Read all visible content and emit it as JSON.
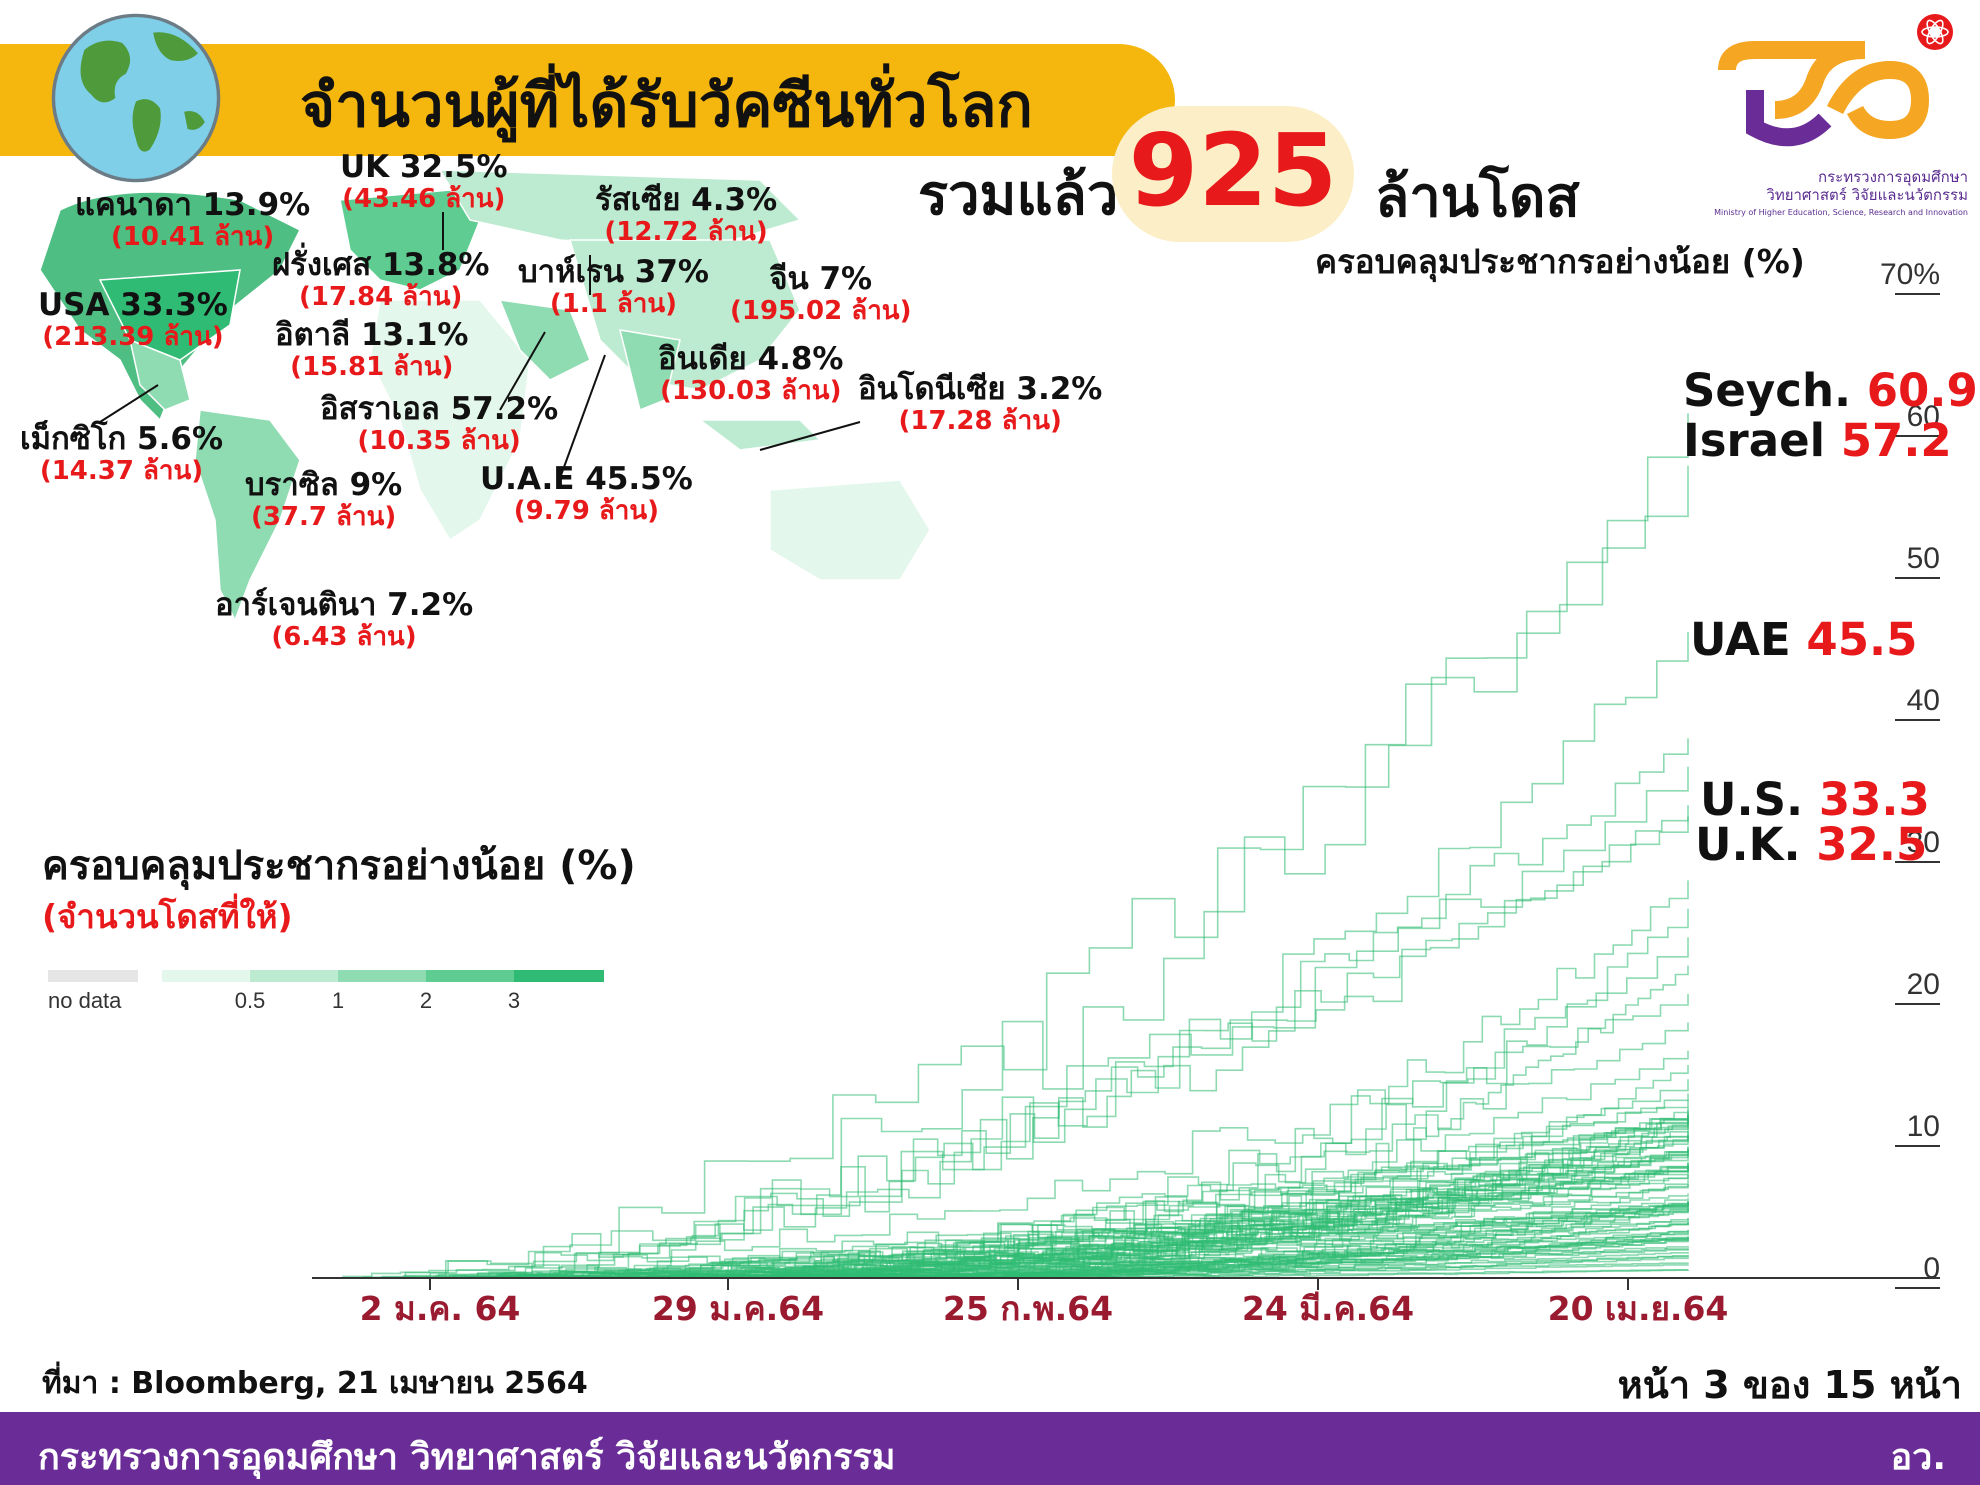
{
  "header": {
    "title": "จำนวนผู้ที่ได้รับวัคซีนทั่วโลก",
    "total_prefix": "รวมแล้ว",
    "total_value": "925",
    "total_unit": "ล้านโดส",
    "coverage_label": "ครอบคลุมประชากรอย่างน้อย (%)"
  },
  "logo": {
    "ministry_th": "กระทรวงการอุดมศึกษา",
    "ministry_th2": "วิทยาศาสตร์ วิจัยและนวัตกรรม",
    "ministry_en": "Ministry of Higher Education, Science, Research and Innovation"
  },
  "countries": [
    {
      "name": "UK 32.5%",
      "doses": "(43.46 ล้าน)"
    },
    {
      "name": "แคนาดา 13.9%",
      "doses": "(10.41 ล้าน)"
    },
    {
      "name": "รัสเซีย 4.3%",
      "doses": "(12.72 ล้าน)"
    },
    {
      "name": "ฝรั่งเศส 13.8%",
      "doses": "(17.84 ล้าน)"
    },
    {
      "name": "บาห์เรน 37%",
      "doses": "(1.1 ล้าน)"
    },
    {
      "name": "จีน 7%",
      "doses": "(195.02 ล้าน)"
    },
    {
      "name": "USA 33.3%",
      "doses": "(213.39 ล้าน)"
    },
    {
      "name": "อิตาลี 13.1%",
      "doses": "(15.81 ล้าน)"
    },
    {
      "name": "อินเดีย 4.8%",
      "doses": "(130.03 ล้าน)"
    },
    {
      "name": "อินโดนีเซีย 3.2%",
      "doses": "(17.28 ล้าน)"
    },
    {
      "name": "อิสราเอล 57.2%",
      "doses": "(10.35 ล้าน)"
    },
    {
      "name": "เม็กซิโก 5.6%",
      "doses": "(14.37 ล้าน)"
    },
    {
      "name": "บราซิล 9%",
      "doses": "(37.7 ล้าน)"
    },
    {
      "name": "U.A.E 45.5%",
      "doses": "(9.79 ล้าน)"
    },
    {
      "name": "อาร์เจนตินา 7.2%",
      "doses": "(6.43 ล้าน)"
    }
  ],
  "legend": {
    "title": "ครอบคลุมประชากรอย่างน้อย (%)",
    "subtitle": "(จำนวนโดสที่ให้)",
    "no_data": "no data",
    "ticks": [
      "0.5",
      "1",
      "2",
      "3"
    ],
    "colors": [
      "#e6e6e6",
      "#e3f7ec",
      "#bdebd1",
      "#8fdcb2",
      "#5fcc92",
      "#2fbb73"
    ]
  },
  "chart_data": {
    "type": "line",
    "x_ticks": [
      "2 ม.ค. 64",
      "29 ม.ค.64",
      "25 ก.พ.64",
      "24 มี.ค.64",
      "20 เม.ย.64"
    ],
    "y_ticks": [
      "0",
      "10",
      "20",
      "30",
      "40",
      "50",
      "60",
      "70%"
    ],
    "ylim": [
      0,
      70
    ],
    "line_color": "#2fbb73",
    "highlighted": [
      {
        "label": "Seych.",
        "value": "60.9"
      },
      {
        "label": "Israel",
        "value": "57.2"
      },
      {
        "label": "UAE",
        "value": "45.5"
      },
      {
        "label": "U.S.",
        "value": "33.3"
      },
      {
        "label": "U.K.",
        "value": "32.5"
      }
    ]
  },
  "footer": {
    "source": "ที่มา : Bloomberg, 21 เมษายน 2564",
    "page": "หน้า 3 ของ 15 หน้า",
    "ministry": "กระทรวงการอุดมศึกษา วิทยาศาสตร์ วิจัยและนวัตกรรม",
    "abbr": "อว."
  }
}
